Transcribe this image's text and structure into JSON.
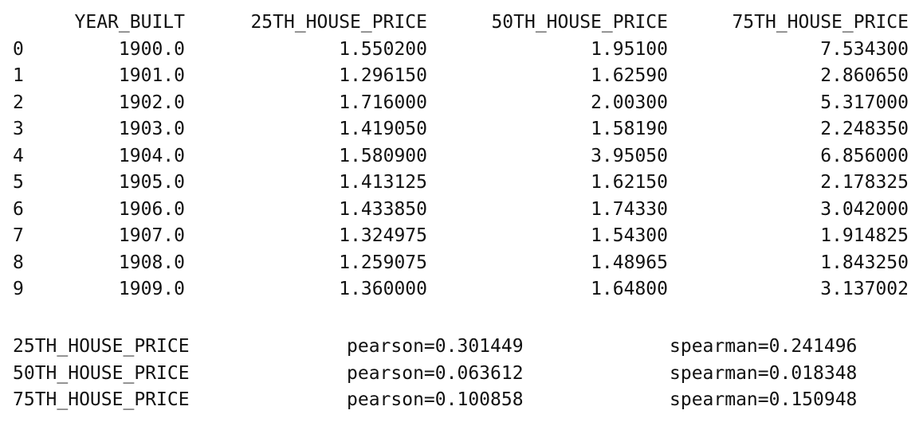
{
  "dataframe": {
    "columns": {
      "year_built": "YEAR_BUILT",
      "p25": "25TH_HOUSE_PRICE",
      "p50": "50TH_HOUSE_PRICE",
      "p75": "75TH_HOUSE_PRICE"
    },
    "rows": [
      {
        "index": "0",
        "year_built": "1900.0",
        "p25": "1.550200",
        "p50": "1.95100",
        "p75": "7.534300"
      },
      {
        "index": "1",
        "year_built": "1901.0",
        "p25": "1.296150",
        "p50": "1.62590",
        "p75": "2.860650"
      },
      {
        "index": "2",
        "year_built": "1902.0",
        "p25": "1.716000",
        "p50": "2.00300",
        "p75": "5.317000"
      },
      {
        "index": "3",
        "year_built": "1903.0",
        "p25": "1.419050",
        "p50": "1.58190",
        "p75": "2.248350"
      },
      {
        "index": "4",
        "year_built": "1904.0",
        "p25": "1.580900",
        "p50": "3.95050",
        "p75": "6.856000"
      },
      {
        "index": "5",
        "year_built": "1905.0",
        "p25": "1.413125",
        "p50": "1.62150",
        "p75": "2.178325"
      },
      {
        "index": "6",
        "year_built": "1906.0",
        "p25": "1.433850",
        "p50": "1.74330",
        "p75": "3.042000"
      },
      {
        "index": "7",
        "year_built": "1907.0",
        "p25": "1.324975",
        "p50": "1.54300",
        "p75": "1.914825"
      },
      {
        "index": "8",
        "year_built": "1908.0",
        "p25": "1.259075",
        "p50": "1.48965",
        "p75": "1.843250"
      },
      {
        "index": "9",
        "year_built": "1909.0",
        "p25": "1.360000",
        "p50": "1.64800",
        "p75": "3.137002"
      }
    ]
  },
  "correlations": [
    {
      "name": "25TH_HOUSE_PRICE",
      "pearson": "pearson=0.301449",
      "spearman": "spearman=0.241496"
    },
    {
      "name": "50TH_HOUSE_PRICE",
      "pearson": "pearson=0.063612",
      "spearman": "spearman=0.018348"
    },
    {
      "name": "75TH_HOUSE_PRICE",
      "pearson": "pearson=0.100858",
      "spearman": "spearman=0.150948"
    }
  ]
}
